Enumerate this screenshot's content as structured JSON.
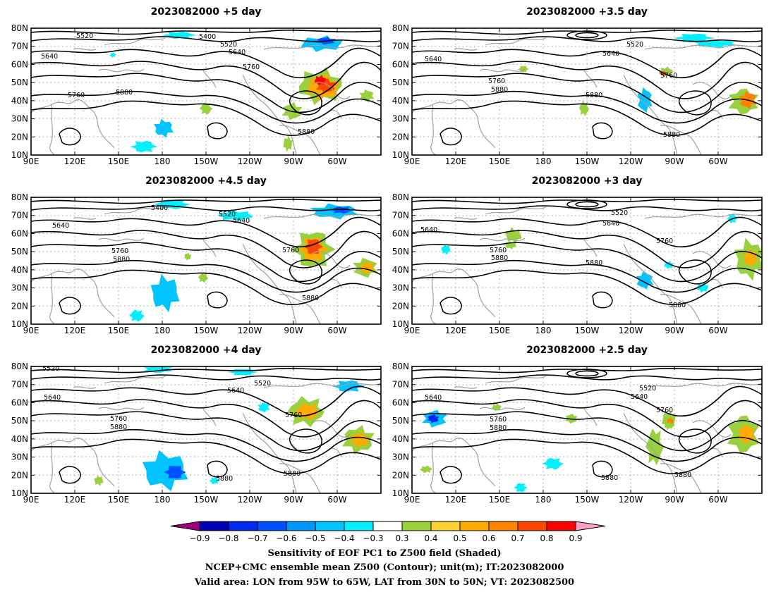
{
  "panels": [
    {
      "title": "2023082000 +5 day",
      "labels": [
        "5520",
        "5400",
        "5520",
        "5640",
        "5640",
        "5760",
        "5760",
        "5880",
        "5880"
      ]
    },
    {
      "title": "2023082000 +3.5 day",
      "labels": [
        "5520",
        "5640",
        "5640",
        "5760",
        "5760",
        "5880",
        "5880",
        "5880"
      ]
    },
    {
      "title": "2023082000 +4.5 day",
      "labels": [
        "5400",
        "5520",
        "5640",
        "5640",
        "5760",
        "5760",
        "5880",
        "5880"
      ]
    },
    {
      "title": "2023082000 +3 day",
      "labels": [
        "5520",
        "5640",
        "5640",
        "5760",
        "5760",
        "5880",
        "5880",
        "5880"
      ]
    },
    {
      "title": "2023082000 +4 day",
      "labels": [
        "5520",
        "5520",
        "5640",
        "5640",
        "5760",
        "5760",
        "5880",
        "5880",
        "5880"
      ]
    },
    {
      "title": "2023082000 +2.5 day",
      "labels": [
        "5520",
        "5640",
        "5640",
        "5760",
        "5760",
        "5880",
        "5880",
        "5880"
      ]
    }
  ],
  "map": {
    "lat_ticks": [
      "80N",
      "70N",
      "60N",
      "50N",
      "40N",
      "30N",
      "20N",
      "10N"
    ],
    "lon_ticks": [
      "90E",
      "120E",
      "150E",
      "180",
      "150W",
      "120W",
      "90W",
      "60W"
    ]
  },
  "colorbar": {
    "labels": [
      "−0.9",
      "−0.8",
      "−0.7",
      "−0.6",
      "−0.5",
      "−0.4",
      "−0.3",
      "0.3",
      "0.4",
      "0.5",
      "0.6",
      "0.7",
      "0.8",
      "0.9"
    ],
    "colors": [
      "#a0007d",
      "#0000b4",
      "#0028f0",
      "#0050ff",
      "#0096ff",
      "#00c3ff",
      "#00f0ff",
      "#ffffff",
      "#98d13d",
      "#ffd234",
      "#ffaa00",
      "#ff8200",
      "#ff4600",
      "#ff0000",
      "#ffa0c8"
    ]
  },
  "caption": [
    "Sensitivity of EOF PC1 to Z500 field (Shaded)",
    "NCEP+CMC ensemble mean Z500 (Contour); unit(m); IT:2023082000",
    "Valid area: LON from 95W to 65W, LAT from 30N to 50N; VT: 2023082500"
  ],
  "colors": {
    "contour": "#000000",
    "coast": "#a0a0a0",
    "grid": "#9a9a9a"
  }
}
